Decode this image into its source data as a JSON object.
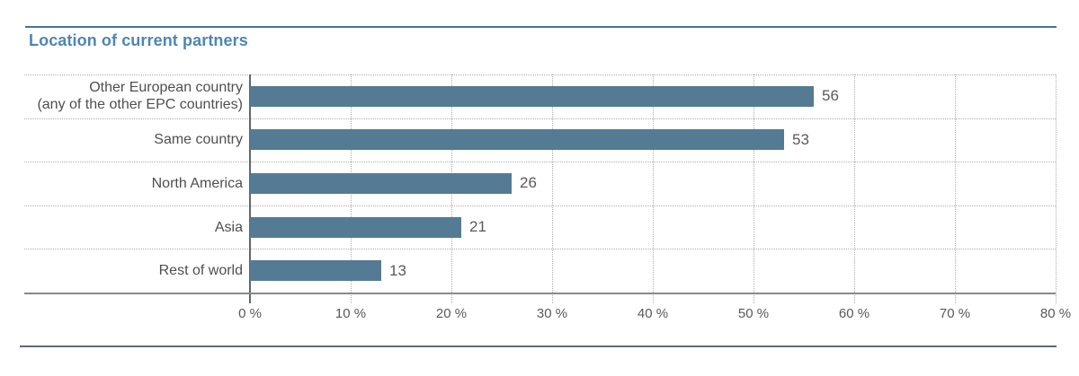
{
  "page": {
    "title": "Location of current partners"
  },
  "colors": {
    "bar": "#547b93",
    "title_text": "#4e86b2",
    "top_rule": "#44749f",
    "bottom_rule": "#5d6a72",
    "axis_line": "#85898c",
    "zero_line": "#63676b",
    "gridline": "#aeaeae",
    "category_text": "#4f4f4f",
    "value_text": "#595959",
    "tick_text": "#595959"
  },
  "chart_data": {
    "type": "bar",
    "orientation": "horizontal",
    "title": "Location of current partners",
    "categories": [
      "Other European country (any of the other EPC countries)",
      "Same country",
      "North America",
      "Asia",
      "Rest of world"
    ],
    "category_lines": [
      [
        "Other European country",
        "(any of the other EPC countries)"
      ],
      [
        "Same country"
      ],
      [
        "North America"
      ],
      [
        "Asia"
      ],
      [
        "Rest of world"
      ]
    ],
    "values": [
      56,
      53,
      26,
      21,
      13
    ],
    "value_labels": [
      "56",
      "53",
      "26",
      "21",
      "13"
    ],
    "xlabel": "",
    "ylabel": "",
    "xlim": [
      0,
      80
    ],
    "xtick_values": [
      0,
      10,
      20,
      30,
      40,
      50,
      60,
      70,
      80
    ],
    "xtick_labels": [
      "0 %",
      "10 %",
      "20 %",
      "30 %",
      "40 %",
      "50 %",
      "60 %",
      "70 %",
      "80 %"
    ],
    "grid": "dotted",
    "legend": "none"
  }
}
